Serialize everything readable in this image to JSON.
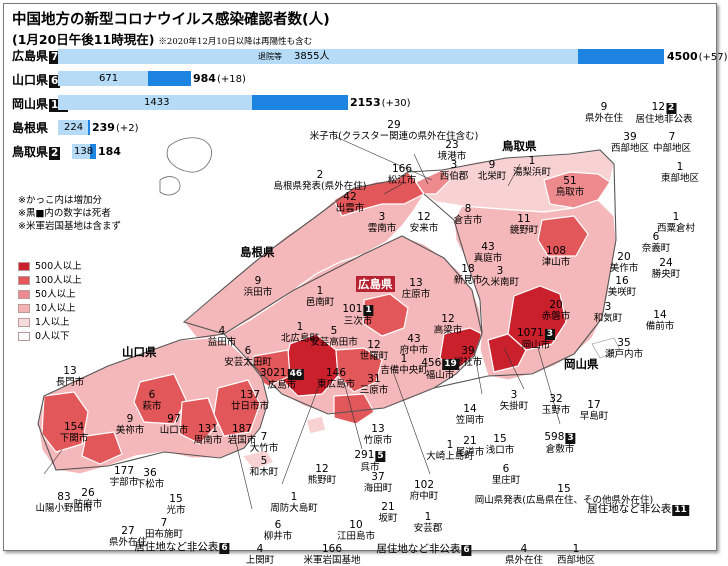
{
  "title": "中国地方の新型コロナウイルス感染確認者数(人)",
  "subtitle": "(1月20日午後11時現在)",
  "subtitle_note": "※2020年12月10日以降は再陽性も含む",
  "bars": [
    {
      "name": "広島県",
      "deaths": "77",
      "base": "3855人",
      "base_note": "退院等",
      "total": "4500",
      "increase": "(+57)"
    },
    {
      "name": "山口県",
      "deaths": "6",
      "base": "671",
      "total": "984",
      "increase": "(+18)"
    },
    {
      "name": "岡山県",
      "deaths": "17",
      "base": "1433",
      "total": "2153",
      "increase": "(+30)"
    },
    {
      "name": "島根県",
      "base": "224",
      "total": "239",
      "increase": "(+2)"
    },
    {
      "name": "鳥取県",
      "deaths": "2",
      "base": "138",
      "total": "184"
    }
  ],
  "chart_data": {
    "type": "bar",
    "categories": [
      "広島県",
      "山口県",
      "岡山県",
      "島根県",
      "鳥取県"
    ],
    "series": [
      {
        "name": "退院等",
        "values": [
          3855,
          671,
          1433,
          224,
          138
        ]
      }
    ],
    "totals": [
      4500,
      984,
      2153,
      239,
      184
    ],
    "increase": [
      "+57",
      "+18",
      "+30",
      "+2",
      ""
    ],
    "deaths": [
      77,
      6,
      17,
      null,
      2
    ]
  },
  "notes": [
    "※かっこ内は増加分",
    "※黒■内の数字は死者",
    "※米軍岩国基地は含まず"
  ],
  "legend": [
    {
      "label": "500人以上",
      "color": "#c9202c"
    },
    {
      "label": "100人以上",
      "color": "#e2585a"
    },
    {
      "label": "50人以上",
      "color": "#ec8a8d"
    },
    {
      "label": "10人以上",
      "color": "#f3b3b5"
    },
    {
      "label": "1人以上",
      "color": "#f9dcdc"
    },
    {
      "label": "0人以下",
      "color": "#ffffff"
    }
  ],
  "prefectures": {
    "shimane": "島根県",
    "yamaguchi": "山口県",
    "hiroshima": "広島県",
    "okayama": "岡山県",
    "tottori": "鳥取県"
  },
  "labels": [
    {
      "v": "9",
      "n": "県外在住"
    },
    {
      "v": "12",
      "d": "2",
      "n": "居住地非公表"
    },
    {
      "v": "29",
      "n": "米子市(クラスター関連の県外在住含む)"
    },
    {
      "v": "23",
      "n": "境港市"
    },
    {
      "v": "3",
      "n": "西伯郡"
    },
    {
      "v": "9",
      "n": "北栄町"
    },
    {
      "v": "1",
      "n": "湯梨浜町"
    },
    {
      "v": "39",
      "n": "西部地区"
    },
    {
      "v": "7",
      "n": "中部地区"
    },
    {
      "v": "1",
      "n": "東部地区"
    },
    {
      "v": "166",
      "n": "松江市"
    },
    {
      "v": "51",
      "n": "鳥取市"
    },
    {
      "v": "2",
      "n": "島根県発表(県外在住)"
    },
    {
      "v": "42",
      "n": "出雲市"
    },
    {
      "v": "3",
      "n": "雲南市"
    },
    {
      "v": "12",
      "n": "安来市"
    },
    {
      "v": "8",
      "n": "倉吉市"
    },
    {
      "v": "11",
      "n": "鏡野町"
    },
    {
      "v": "43",
      "n": "真庭市"
    },
    {
      "v": "108",
      "n": "津山市"
    },
    {
      "v": "1",
      "n": "西粟倉村"
    },
    {
      "v": "6",
      "n": "奈義町"
    },
    {
      "v": "20",
      "n": "美作市"
    },
    {
      "v": "24",
      "n": "勝央町"
    },
    {
      "v": "16",
      "n": "美咲町"
    },
    {
      "v": "3",
      "n": "和気町"
    },
    {
      "v": "14",
      "n": "備前市"
    },
    {
      "v": "35",
      "n": "瀬戸内市"
    },
    {
      "v": "1",
      "n": "邑南町"
    },
    {
      "v": "9",
      "n": "浜田市"
    },
    {
      "v": "13",
      "n": "庄原市"
    },
    {
      "v": "18",
      "n": "新見市"
    },
    {
      "v": "3",
      "n": "久米南町"
    },
    {
      "v": "20",
      "n": "赤磐市"
    },
    {
      "v": "1",
      "n": "北広島町"
    },
    {
      "v": "101",
      "d": "1",
      "n": "三次市"
    },
    {
      "v": "5",
      "n": "安芸高田市"
    },
    {
      "v": "12",
      "n": "世羅町"
    },
    {
      "v": "43",
      "n": "府中市"
    },
    {
      "v": "12",
      "n": "高梁市"
    },
    {
      "v": "1",
      "n": "吉備中央町"
    },
    {
      "v": "39",
      "n": "総社市"
    },
    {
      "v": "1071",
      "d": "3",
      "n": "岡山市"
    },
    {
      "v": "4",
      "n": "益田市"
    },
    {
      "v": "6",
      "n": "安芸太田町"
    },
    {
      "v": "13",
      "n": "長門市"
    },
    {
      "v": "3021",
      "d": "46",
      "n": "広島市"
    },
    {
      "v": "146",
      "n": "東広島市"
    },
    {
      "v": "31",
      "n": "三原市"
    },
    {
      "v": "456",
      "d": "19",
      "n": "福山市"
    },
    {
      "v": "6",
      "n": "萩市"
    },
    {
      "v": "137",
      "n": "廿日市市"
    },
    {
      "v": "9",
      "n": "美祢市"
    },
    {
      "v": "97",
      "n": "山口市"
    },
    {
      "v": "3",
      "n": "矢掛町"
    },
    {
      "v": "32",
      "n": "玉野市"
    },
    {
      "v": "17",
      "n": "早島町"
    },
    {
      "v": "154",
      "n": "下関市"
    },
    {
      "v": "131",
      "n": "周南市"
    },
    {
      "v": "187",
      "n": "岩国市"
    },
    {
      "v": "7",
      "n": "大竹市"
    },
    {
      "v": "14",
      "n": "笠岡市"
    },
    {
      "v": "598",
      "d": "3",
      "n": "倉敷市"
    },
    {
      "v": "13",
      "n": "竹原市"
    },
    {
      "v": "5",
      "n": "和木町"
    },
    {
      "v": "291",
      "d": "5",
      "n": "呉市"
    },
    {
      "v": "1",
      "n": "大崎上島町"
    },
    {
      "v": "21",
      "n": "尾道市"
    },
    {
      "v": "15",
      "n": "浅口市"
    },
    {
      "v": "177",
      "n": "宇部市"
    },
    {
      "v": "36",
      "n": "下松市"
    },
    {
      "v": "12",
      "n": "熊野町"
    },
    {
      "v": "37",
      "n": "海田町"
    },
    {
      "v": "6",
      "n": "里庄町"
    },
    {
      "v": "26",
      "n": "防府市"
    },
    {
      "v": "102",
      "n": "府中町"
    },
    {
      "v": "15",
      "n": "岡山県発表(広島県在住、その他県外在住)"
    },
    {
      "v": "83",
      "n": "山陽小野田市"
    },
    {
      "v": "15",
      "n": "光市"
    },
    {
      "v": "1",
      "n": "周防大島町"
    },
    {
      "v": "21",
      "n": "坂町"
    },
    {
      "v": "1",
      "n": "安芸郡"
    },
    {
      "v": "居住地など非公表",
      "d": "11"
    },
    {
      "v": "27",
      "n": "県外在住"
    },
    {
      "v": "7",
      "n": "田布施町"
    },
    {
      "v": "6",
      "n": "柳井市"
    },
    {
      "v": "10",
      "n": "江田島市"
    },
    {
      "v": "居住地など非公表",
      "d": "6"
    },
    {
      "v": "4",
      "n": "上関町"
    },
    {
      "v": "166",
      "n": "米軍岩国基地"
    },
    {
      "v": "居住地など非公表",
      "d": "6"
    },
    {
      "v": "4",
      "n": "県外在住"
    },
    {
      "v": "1",
      "n": "西部地区"
    }
  ]
}
